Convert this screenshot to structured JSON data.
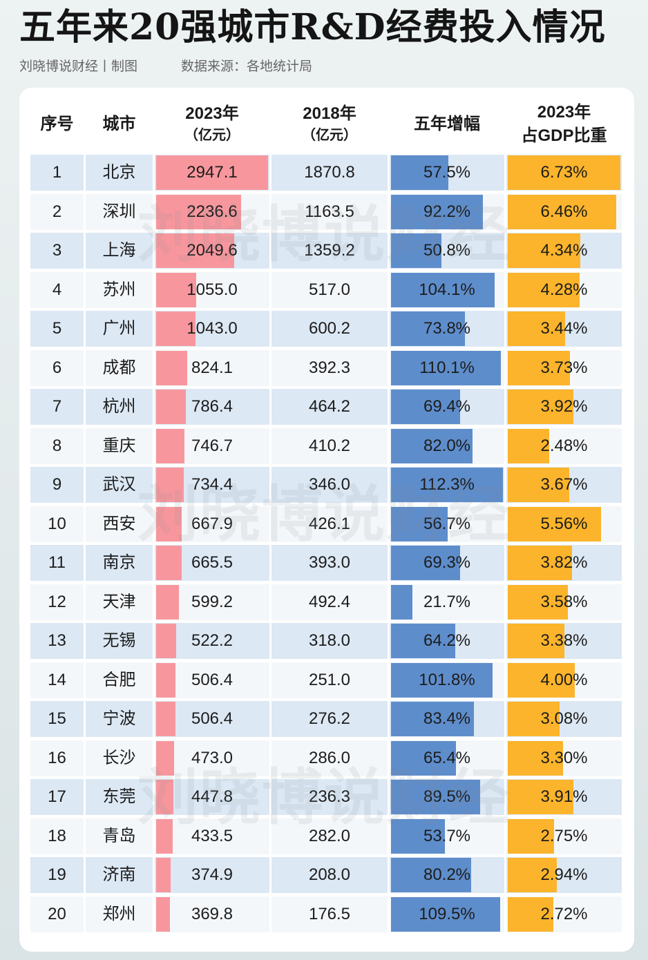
{
  "header": {
    "credit": "刘晓博说财经丨制图",
    "source": "数据来源：各地统计局"
  },
  "watermark": "刘晓博说财经",
  "colors": {
    "background_top": "#edf2f2",
    "background_bottom": "#dae3e5",
    "row_band": "#dce8f4",
    "row_plain": "#f4f7fa",
    "rd_2023_bar": "#f7979d",
    "growth_bar": "#5e8dcb",
    "gdp_share_bar": "#fbb42b"
  },
  "chart_data": {
    "type": "table",
    "title": "五年来20强城市R&D经费投入情况",
    "columns": [
      {
        "label": "序号"
      },
      {
        "label": "城市"
      },
      {
        "label": "2023年",
        "sub": "（亿元）"
      },
      {
        "label": "2018年",
        "sub": "（亿元）"
      },
      {
        "label": "五年增幅"
      },
      {
        "label": "2023年",
        "sub": "占GDP比重"
      }
    ],
    "rows": [
      {
        "rank": "1",
        "city": "北京",
        "rd_2023": "2947.1",
        "rd_2018": "1870.8",
        "growth": "57.5%",
        "gdp_share": "6.73%"
      },
      {
        "rank": "2",
        "city": "深圳",
        "rd_2023": "2236.6",
        "rd_2018": "1163.5",
        "growth": "92.2%",
        "gdp_share": "6.46%"
      },
      {
        "rank": "3",
        "city": "上海",
        "rd_2023": "2049.6",
        "rd_2018": "1359.2",
        "growth": "50.8%",
        "gdp_share": "4.34%"
      },
      {
        "rank": "4",
        "city": "苏州",
        "rd_2023": "1055.0",
        "rd_2018": "517.0",
        "growth": "104.1%",
        "gdp_share": "4.28%"
      },
      {
        "rank": "5",
        "city": "广州",
        "rd_2023": "1043.0",
        "rd_2018": "600.2",
        "growth": "73.8%",
        "gdp_share": "3.44%"
      },
      {
        "rank": "6",
        "city": "成都",
        "rd_2023": "824.1",
        "rd_2018": "392.3",
        "growth": "110.1%",
        "gdp_share": "3.73%"
      },
      {
        "rank": "7",
        "city": "杭州",
        "rd_2023": "786.4",
        "rd_2018": "464.2",
        "growth": "69.4%",
        "gdp_share": "3.92%"
      },
      {
        "rank": "8",
        "city": "重庆",
        "rd_2023": "746.7",
        "rd_2018": "410.2",
        "growth": "82.0%",
        "gdp_share": "2.48%"
      },
      {
        "rank": "9",
        "city": "武汉",
        "rd_2023": "734.4",
        "rd_2018": "346.0",
        "growth": "112.3%",
        "gdp_share": "3.67%"
      },
      {
        "rank": "10",
        "city": "西安",
        "rd_2023": "667.9",
        "rd_2018": "426.1",
        "growth": "56.7%",
        "gdp_share": "5.56%"
      },
      {
        "rank": "11",
        "city": "南京",
        "rd_2023": "665.5",
        "rd_2018": "393.0",
        "growth": "69.3%",
        "gdp_share": "3.82%"
      },
      {
        "rank": "12",
        "city": "天津",
        "rd_2023": "599.2",
        "rd_2018": "492.4",
        "growth": "21.7%",
        "gdp_share": "3.58%"
      },
      {
        "rank": "13",
        "city": "无锡",
        "rd_2023": "522.2",
        "rd_2018": "318.0",
        "growth": "64.2%",
        "gdp_share": "3.38%"
      },
      {
        "rank": "14",
        "city": "合肥",
        "rd_2023": "506.4",
        "rd_2018": "251.0",
        "growth": "101.8%",
        "gdp_share": "4.00%"
      },
      {
        "rank": "15",
        "city": "宁波",
        "rd_2023": "506.4",
        "rd_2018": "276.2",
        "growth": "83.4%",
        "gdp_share": "3.08%"
      },
      {
        "rank": "16",
        "city": "长沙",
        "rd_2023": "473.0",
        "rd_2018": "286.0",
        "growth": "65.4%",
        "gdp_share": "3.30%"
      },
      {
        "rank": "17",
        "city": "东莞",
        "rd_2023": "447.8",
        "rd_2018": "236.3",
        "growth": "89.5%",
        "gdp_share": "3.91%"
      },
      {
        "rank": "18",
        "city": "青岛",
        "rd_2023": "433.5",
        "rd_2018": "282.0",
        "growth": "53.7%",
        "gdp_share": "2.75%"
      },
      {
        "rank": "19",
        "city": "济南",
        "rd_2023": "374.9",
        "rd_2018": "208.0",
        "growth": "80.2%",
        "gdp_share": "2.94%"
      },
      {
        "rank": "20",
        "city": "郑州",
        "rd_2023": "369.8",
        "rd_2018": "176.5",
        "growth": "109.5%",
        "gdp_share": "2.72%"
      }
    ]
  }
}
